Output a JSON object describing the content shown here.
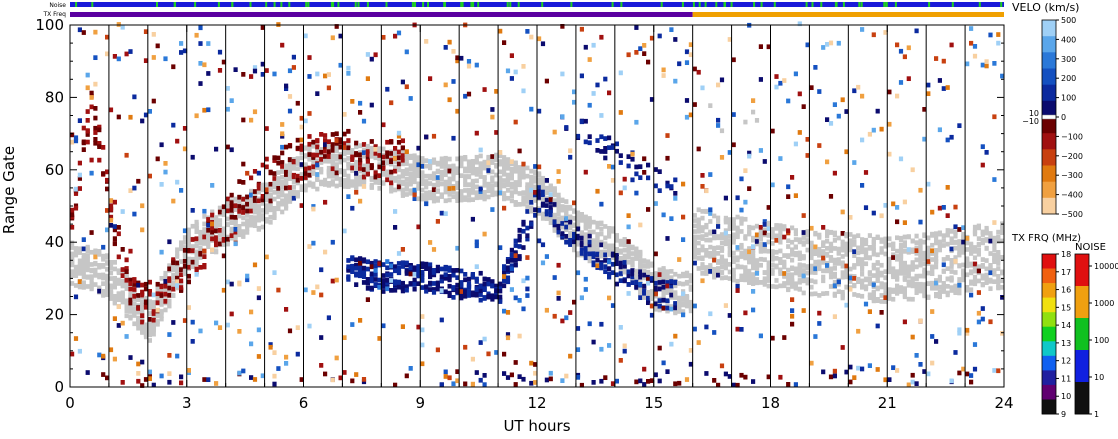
{
  "chart_data": {
    "type": "heatmap",
    "xlabel": "UT hours",
    "ylabel": "Range Gate",
    "xlim": [
      0,
      24
    ],
    "ylim": [
      0,
      100
    ],
    "xticks": [
      "0",
      "3",
      "6",
      "9",
      "12",
      "15",
      "18",
      "21",
      "24"
    ],
    "yticks": [
      "0",
      "20",
      "40",
      "60",
      "80",
      "100"
    ],
    "vertical_lines_every_hours": 1,
    "top_bars": {
      "noise_label": "Noise",
      "txfreq_label": "TX Freq"
    },
    "velocity_scale": {
      "title": "VELO (km/s)",
      "ticks": [
        "500",
        "400",
        "300",
        "200",
        "100",
        "0",
        "−100",
        "−200",
        "−300",
        "−400",
        "−500"
      ],
      "small_labels": [
        "10",
        "−10"
      ],
      "positive_colors": [
        "#0b0b6e",
        "#0b2a9e",
        "#1450c0",
        "#2a78d8",
        "#5aa6ea",
        "#9fd0f6"
      ],
      "negative_colors": [
        "#6b0000",
        "#a01010",
        "#c84010",
        "#e07a10",
        "#f0a040",
        "#f8d0a0"
      ]
    },
    "txfreq_scale": {
      "title": "TX FRQ (MHz)",
      "ticks": [
        "18",
        "17",
        "16",
        "15",
        "14",
        "13",
        "12",
        "11",
        "10",
        "9"
      ],
      "colors": [
        "#e01010",
        "#f06010",
        "#f0a010",
        "#f0e010",
        "#90e010",
        "#10d020",
        "#10c8c8",
        "#1060f0",
        "#2020a0",
        "#600070",
        "#101010"
      ]
    },
    "noise_scale": {
      "title": "NOISE",
      "ticks": [
        "10000",
        "1000",
        "100",
        "10",
        "1"
      ],
      "colors": [
        "#e01010",
        "#f0a010",
        "#10c020",
        "#1020e0",
        "#101010"
      ]
    },
    "ground_scatter_color": "#c6c6c6",
    "series": [
      {
        "name": "ground scatter (lower band)",
        "x": [
          0,
          1,
          2,
          3,
          4,
          5,
          6,
          7,
          8,
          9,
          10,
          11,
          12,
          13,
          14,
          15,
          15.9
        ],
        "y": [
          34,
          30,
          18,
          38,
          45,
          50,
          60,
          61,
          60,
          57,
          57,
          58,
          53,
          42,
          37,
          27,
          25
        ]
      },
      {
        "name": "ground scatter (upper band)",
        "x": [
          16,
          17,
          18,
          19,
          20,
          21,
          22,
          23,
          24
        ],
        "y": [
          40,
          38,
          36,
          34,
          33,
          32,
          33,
          35,
          36
        ]
      },
      {
        "name": "approaching echoes (blue)",
        "x": [
          7,
          8,
          9,
          10,
          11,
          12,
          13,
          14,
          15
        ],
        "y": [
          32,
          30,
          30,
          28,
          27,
          52,
          40,
          32,
          25
        ]
      },
      {
        "name": "receding echoes (red)",
        "x": [
          0,
          0.5,
          1,
          1.5,
          2,
          5,
          6,
          7,
          8
        ],
        "y": [
          45,
          80,
          50,
          25,
          22,
          58,
          63,
          65,
          62
        ]
      }
    ]
  }
}
